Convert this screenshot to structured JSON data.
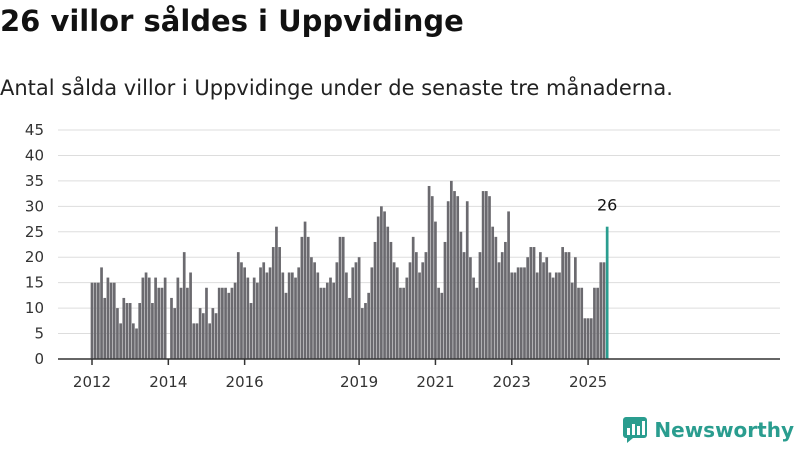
{
  "header": {
    "title": "26 villor såldes i Uppvidinge",
    "subtitle": "Antal sålda villor i Uppvidinge under de senaste tre månaderna."
  },
  "brand": {
    "name": "Newsworthy",
    "icon": "newsworthy-logo-icon",
    "color": "#2a9d8f"
  },
  "chart_data": {
    "type": "bar",
    "start": "2012-01",
    "frequency": "monthly",
    "values": [
      15,
      15,
      15,
      18,
      12,
      16,
      15,
      15,
      10,
      7,
      12,
      11,
      11,
      7,
      6,
      11,
      16,
      17,
      16,
      11,
      16,
      14,
      14,
      16,
      0,
      12,
      10,
      16,
      14,
      21,
      14,
      17,
      7,
      7,
      10,
      9,
      14,
      7,
      10,
      9,
      14,
      14,
      14,
      13,
      14,
      15,
      21,
      19,
      18,
      16,
      11,
      16,
      15,
      18,
      19,
      17,
      18,
      22,
      26,
      22,
      17,
      13,
      17,
      17,
      16,
      18,
      24,
      27,
      24,
      20,
      19,
      17,
      14,
      14,
      15,
      16,
      15,
      19,
      24,
      24,
      17,
      12,
      18,
      19,
      20,
      10,
      11,
      13,
      18,
      23,
      28,
      30,
      29,
      26,
      23,
      19,
      18,
      14,
      14,
      16,
      19,
      24,
      21,
      17,
      19,
      21,
      34,
      32,
      27,
      14,
      13,
      23,
      31,
      35,
      33,
      32,
      25,
      21,
      31,
      20,
      16,
      14,
      21,
      33,
      33,
      32,
      26,
      24,
      19,
      21,
      23,
      29,
      17,
      17,
      18,
      18,
      18,
      20,
      22,
      22,
      17,
      21,
      19,
      20,
      17,
      16,
      17,
      17,
      22,
      21,
      21,
      15,
      20,
      14,
      14,
      8,
      8,
      8,
      14,
      14,
      19,
      19,
      26
    ],
    "highlight_color": "#2a9d8f",
    "bar_color": "#6b6a6f",
    "annotation": {
      "label": "26"
    },
    "xticks": [
      "2012",
      "2014",
      "2016",
      "2019",
      "2021",
      "2023",
      "2025"
    ],
    "xtick_months": [
      "2012-01",
      "2014-01",
      "2016-01",
      "2019-01",
      "2021-01",
      "2023-01",
      "2025-01"
    ],
    "yticks": [
      0,
      5,
      10,
      15,
      20,
      25,
      30,
      35,
      40,
      45
    ],
    "ylim": [
      0,
      45
    ],
    "grid": true
  }
}
